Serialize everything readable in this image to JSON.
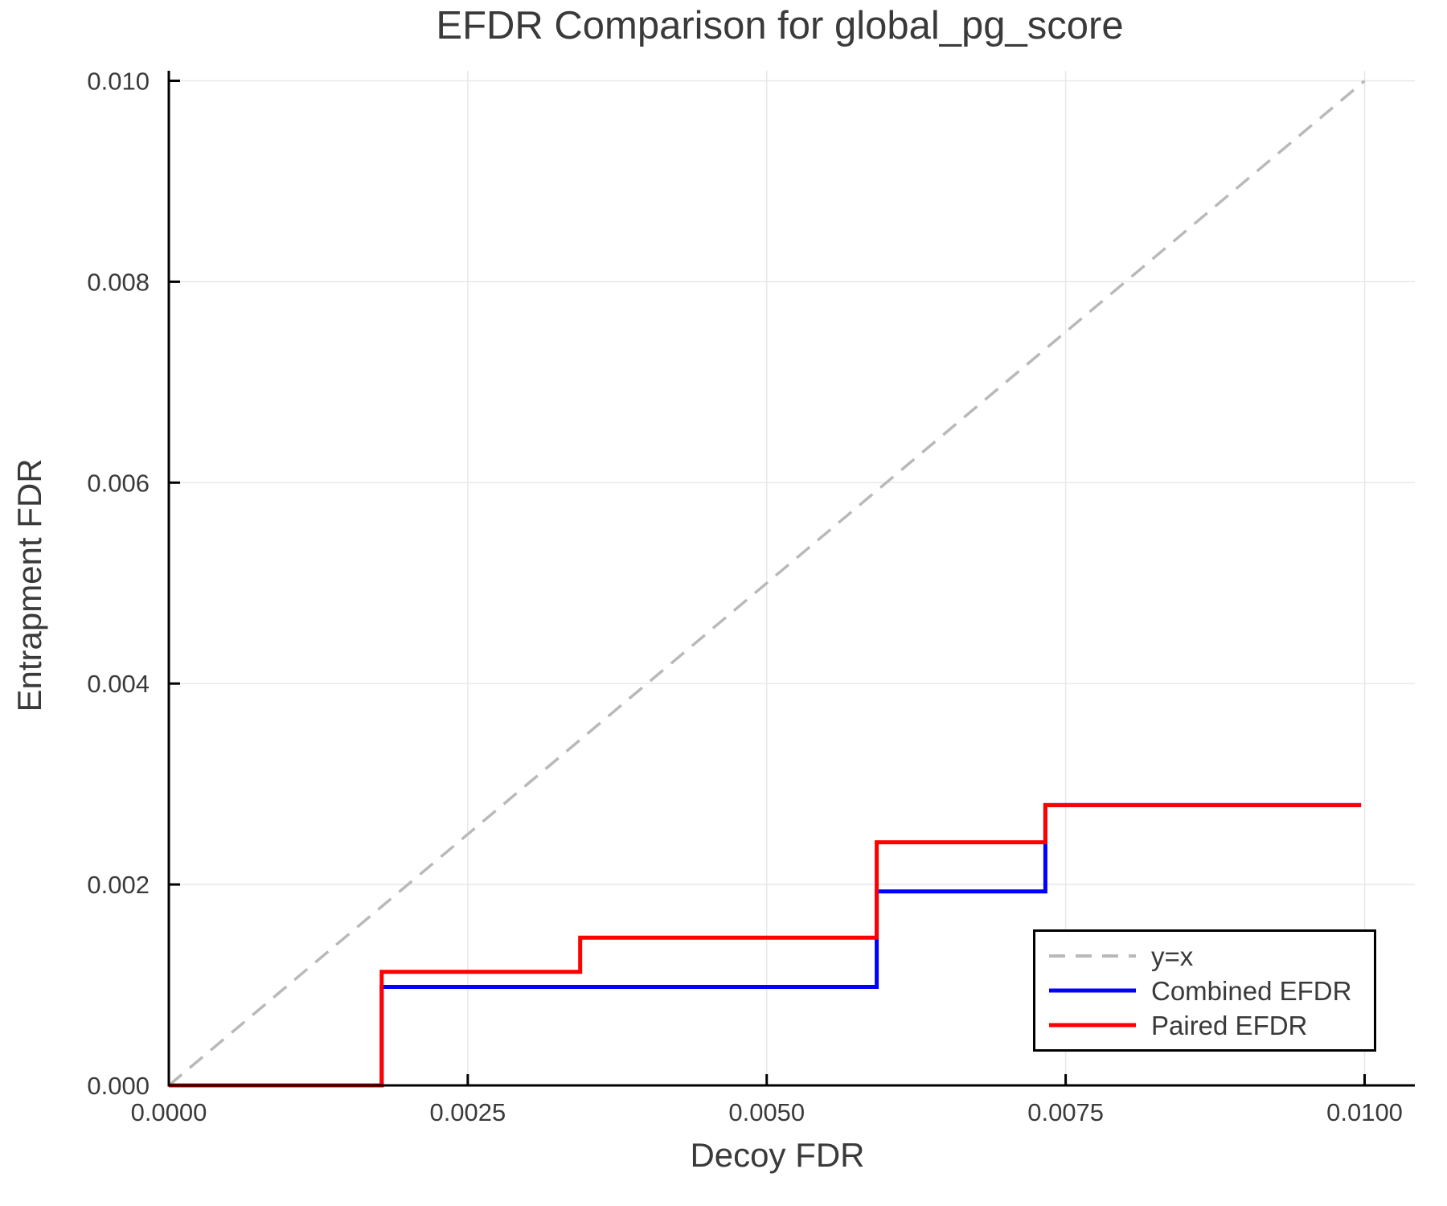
{
  "chart_data": {
    "type": "line",
    "title": "EFDR Comparison for global_pg_score",
    "xlabel": "Decoy FDR",
    "ylabel": "Entrapment FDR",
    "xlim": [
      0,
      0.01042
    ],
    "ylim": [
      0,
      0.0101
    ],
    "xticks": [
      0.0,
      0.0025,
      0.005,
      0.0075,
      0.01
    ],
    "xtick_labels": [
      "0.0000",
      "0.0025",
      "0.0050",
      "0.0075",
      "0.0100"
    ],
    "yticks": [
      0.0,
      0.002,
      0.004,
      0.006,
      0.008,
      0.01
    ],
    "ytick_labels": [
      "0.000",
      "0.002",
      "0.004",
      "0.006",
      "0.008",
      "0.010"
    ],
    "grid": true,
    "legend_position": "lower right",
    "colors": {
      "identity_line": "#b9b9b9",
      "combined": "#0000ff",
      "paired": "#ff0000",
      "gridline": "#e8e8e8",
      "axis": "#000000",
      "text": "#3a3a3a"
    },
    "series": [
      {
        "name": "y=x",
        "style": "dashed",
        "color": "#b9b9b9",
        "x": [
          0,
          0.01
        ],
        "y": [
          0,
          0.01
        ]
      },
      {
        "name": "Combined EFDR",
        "style": "solid",
        "color": "#0000ff",
        "x": [
          0,
          0.00178,
          0.00178,
          0.00592,
          0.00592,
          0.00733,
          0.00733,
          0.00997
        ],
        "y": [
          0,
          0,
          0.00098,
          0.00098,
          0.00193,
          0.00193,
          0.00279,
          0.00279
        ]
      },
      {
        "name": "Paired EFDR",
        "style": "solid",
        "color": "#ff0000",
        "x": [
          0,
          0.00178,
          0.00178,
          0.00344,
          0.00344,
          0.00592,
          0.00592,
          0.00733,
          0.00733,
          0.00997
        ],
        "y": [
          0,
          0,
          0.00113,
          0.00113,
          0.00147,
          0.00147,
          0.00242,
          0.00242,
          0.00279,
          0.00279
        ]
      }
    ]
  }
}
